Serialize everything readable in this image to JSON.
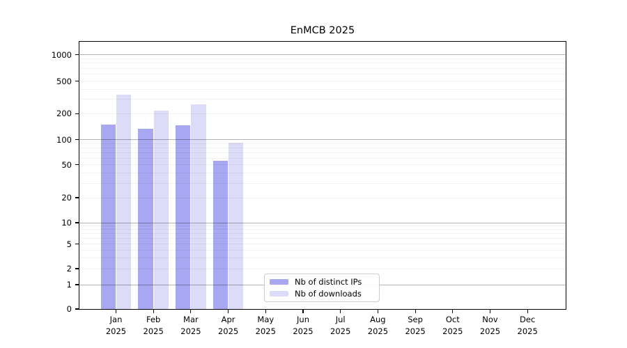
{
  "chart_data": {
    "type": "bar",
    "title": "EnMCB 2025",
    "categories": [
      "Jan 2025",
      "Feb 2025",
      "Mar 2025",
      "Apr 2025",
      "May 2025",
      "Jun 2025",
      "Jul 2025",
      "Aug 2025",
      "Sep 2025",
      "Oct 2025",
      "Nov 2025",
      "Dec 2025"
    ],
    "series": [
      {
        "name": "Nb of distinct IPs",
        "color": "#a7a7f2",
        "values": [
          150,
          133,
          146,
          56,
          0,
          0,
          0,
          0,
          0,
          0,
          0,
          0
        ]
      },
      {
        "name": "Nb of downloads",
        "color": "#dcdcf8",
        "values": [
          340,
          218,
          258,
          92,
          0,
          0,
          0,
          0,
          0,
          0,
          0,
          0
        ]
      }
    ],
    "xlabel": "",
    "ylabel": "",
    "yaxis": {
      "scale": "symlog",
      "ticks": [
        0,
        1,
        2,
        5,
        10,
        20,
        50,
        100,
        200,
        500,
        1000
      ],
      "major_grid_values": [
        1,
        10,
        100,
        1000
      ],
      "minor_grid_values": [
        3,
        4,
        6,
        7,
        8,
        9,
        30,
        40,
        60,
        70,
        80,
        90,
        300,
        400,
        600,
        700,
        800,
        900
      ],
      "labeled_minor_grid_values": [
        2,
        5,
        20,
        50,
        200,
        500
      ],
      "range": [
        0,
        1400
      ]
    },
    "legend": {
      "position": "lower center",
      "entries": [
        "Nb of distinct IPs",
        "Nb of downloads"
      ]
    },
    "grid": "horizontal"
  }
}
